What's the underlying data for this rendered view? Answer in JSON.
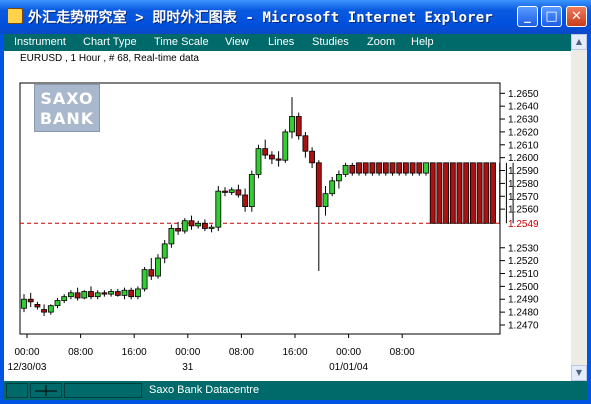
{
  "window": {
    "title": "外汇走势研究室 > 即时外汇图表 - Microsoft Internet Explorer",
    "minimize_glyph": "_",
    "maximize_glyph": "□",
    "close_glyph": "✕",
    "icon": "ie-window-icon"
  },
  "menu": {
    "items": [
      {
        "label": "Instrument"
      },
      {
        "label": "Chart Type"
      },
      {
        "label": "Time Scale"
      },
      {
        "label": "View"
      },
      {
        "label": "Lines"
      },
      {
        "label": "Studies"
      },
      {
        "label": "Zoom"
      },
      {
        "label": "Help"
      }
    ]
  },
  "chart_header": "EURUSD , 1 Hour , # 68, Real-time data",
  "logo": {
    "line1": "SAXO",
    "line2": "BANK"
  },
  "status": {
    "text": "Saxo Bank Datacentre"
  },
  "colors": {
    "frame": "#0054e3",
    "menubar": "#006a6a",
    "up_candle": "#33cc33",
    "down_candle": "#aa1111",
    "price_line": "#cc0000"
  },
  "chart_data": {
    "type": "candlestick",
    "instrument": "EURUSD",
    "timeframe": "1 Hour",
    "current_price": 1.2549,
    "current_price_label": "1.2549",
    "ylim": [
      1.2463,
      1.2658
    ],
    "y_ticks": [
      "1.2650",
      "1.2640",
      "1.2630",
      "1.2620",
      "1.2610",
      "1.2600",
      "1.2590",
      "1.2580",
      "1.2570",
      "1.2560",
      "1.2530",
      "1.2520",
      "1.2510",
      "1.2500",
      "1.2490",
      "1.2480",
      "1.2470"
    ],
    "x_ticks": [
      {
        "label": "00:00",
        "hour": 0
      },
      {
        "label": "08:00",
        "hour": 8
      },
      {
        "label": "16:00",
        "hour": 16
      },
      {
        "label": "00:00",
        "hour": 24
      },
      {
        "label": "08:00",
        "hour": 32
      },
      {
        "label": "16:00",
        "hour": 40
      },
      {
        "label": "00:00",
        "hour": 48
      },
      {
        "label": "08:00",
        "hour": 56
      }
    ],
    "date_labels": [
      {
        "label": "12/30/03",
        "hour": 0
      },
      {
        "label": "31",
        "hour": 24
      },
      {
        "label": "01/01/04",
        "hour": 48
      }
    ],
    "candles": [
      {
        "o": 1.2483,
        "h": 1.2494,
        "l": 1.248,
        "c": 1.249
      },
      {
        "o": 1.249,
        "h": 1.2495,
        "l": 1.2484,
        "c": 1.2488
      },
      {
        "o": 1.2486,
        "h": 1.2488,
        "l": 1.2482,
        "c": 1.2484
      },
      {
        "o": 1.2482,
        "h": 1.2486,
        "l": 1.2477,
        "c": 1.248
      },
      {
        "o": 1.248,
        "h": 1.2486,
        "l": 1.2478,
        "c": 1.2485
      },
      {
        "o": 1.2485,
        "h": 1.2491,
        "l": 1.2483,
        "c": 1.2489
      },
      {
        "o": 1.2489,
        "h": 1.2494,
        "l": 1.2487,
        "c": 1.2492
      },
      {
        "o": 1.2492,
        "h": 1.2497,
        "l": 1.249,
        "c": 1.2495
      },
      {
        "o": 1.2495,
        "h": 1.2499,
        "l": 1.2489,
        "c": 1.2491
      },
      {
        "o": 1.2491,
        "h": 1.2497,
        "l": 1.249,
        "c": 1.2496
      },
      {
        "o": 1.2496,
        "h": 1.25,
        "l": 1.249,
        "c": 1.2492
      },
      {
        "o": 1.2492,
        "h": 1.2497,
        "l": 1.249,
        "c": 1.2495
      },
      {
        "o": 1.2495,
        "h": 1.2497,
        "l": 1.2492,
        "c": 1.2494
      },
      {
        "o": 1.2494,
        "h": 1.2498,
        "l": 1.2492,
        "c": 1.2496
      },
      {
        "o": 1.2496,
        "h": 1.2498,
        "l": 1.2492,
        "c": 1.2493
      },
      {
        "o": 1.2493,
        "h": 1.2499,
        "l": 1.249,
        "c": 1.2497
      },
      {
        "o": 1.2497,
        "h": 1.2499,
        "l": 1.249,
        "c": 1.2492
      },
      {
        "o": 1.2492,
        "h": 1.25,
        "l": 1.249,
        "c": 1.2498
      },
      {
        "o": 1.2498,
        "h": 1.2515,
        "l": 1.2496,
        "c": 1.2513
      },
      {
        "o": 1.2513,
        "h": 1.2522,
        "l": 1.2505,
        "c": 1.2508
      },
      {
        "o": 1.2508,
        "h": 1.2525,
        "l": 1.2506,
        "c": 1.2522
      },
      {
        "o": 1.2522,
        "h": 1.2536,
        "l": 1.2518,
        "c": 1.2533
      },
      {
        "o": 1.2533,
        "h": 1.2548,
        "l": 1.253,
        "c": 1.2545
      },
      {
        "o": 1.2545,
        "h": 1.255,
        "l": 1.254,
        "c": 1.2543
      },
      {
        "o": 1.2543,
        "h": 1.2553,
        "l": 1.2541,
        "c": 1.2551
      },
      {
        "o": 1.2551,
        "h": 1.2555,
        "l": 1.2544,
        "c": 1.2547
      },
      {
        "o": 1.2547,
        "h": 1.2551,
        "l": 1.2545,
        "c": 1.2549
      },
      {
        "o": 1.2549,
        "h": 1.2552,
        "l": 1.2543,
        "c": 1.2545
      },
      {
        "o": 1.2545,
        "h": 1.2548,
        "l": 1.2542,
        "c": 1.2546
      },
      {
        "o": 1.2546,
        "h": 1.2578,
        "l": 1.2543,
        "c": 1.2574
      },
      {
        "o": 1.2574,
        "h": 1.2577,
        "l": 1.257,
        "c": 1.2573
      },
      {
        "o": 1.2573,
        "h": 1.2577,
        "l": 1.2571,
        "c": 1.2575
      },
      {
        "o": 1.2575,
        "h": 1.2579,
        "l": 1.2569,
        "c": 1.2571
      },
      {
        "o": 1.2571,
        "h": 1.2576,
        "l": 1.2558,
        "c": 1.2562
      },
      {
        "o": 1.2562,
        "h": 1.259,
        "l": 1.2558,
        "c": 1.2587
      },
      {
        "o": 1.2587,
        "h": 1.261,
        "l": 1.2584,
        "c": 1.2607
      },
      {
        "o": 1.2607,
        "h": 1.2614,
        "l": 1.2599,
        "c": 1.2602
      },
      {
        "o": 1.2602,
        "h": 1.2605,
        "l": 1.2595,
        "c": 1.2599
      },
      {
        "o": 1.2599,
        "h": 1.2605,
        "l": 1.2593,
        "c": 1.2598
      },
      {
        "o": 1.2598,
        "h": 1.2622,
        "l": 1.2596,
        "c": 1.262
      },
      {
        "o": 1.262,
        "h": 1.2647,
        "l": 1.2615,
        "c": 1.2632
      },
      {
        "o": 1.2632,
        "h": 1.2635,
        "l": 1.2614,
        "c": 1.2617
      },
      {
        "o": 1.2617,
        "h": 1.262,
        "l": 1.26,
        "c": 1.2605
      },
      {
        "o": 1.2605,
        "h": 1.2608,
        "l": 1.2592,
        "c": 1.2596
      },
      {
        "o": 1.2596,
        "h": 1.2598,
        "l": 1.2512,
        "c": 1.2562
      },
      {
        "o": 1.2562,
        "h": 1.2578,
        "l": 1.2555,
        "c": 1.2572
      },
      {
        "o": 1.2572,
        "h": 1.2585,
        "l": 1.257,
        "c": 1.2582
      },
      {
        "o": 1.2582,
        "h": 1.259,
        "l": 1.2576,
        "c": 1.2587
      },
      {
        "o": 1.2587,
        "h": 1.2596,
        "l": 1.2585,
        "c": 1.2594
      },
      {
        "o": 1.2594,
        "h": 1.2596,
        "l": 1.2586,
        "c": 1.2588
      },
      {
        "o": 1.2596,
        "h": 1.2596,
        "l": 1.2586,
        "c": 1.2588
      },
      {
        "o": 1.2596,
        "h": 1.2596,
        "l": 1.2586,
        "c": 1.2588
      },
      {
        "o": 1.2596,
        "h": 1.2596,
        "l": 1.2586,
        "c": 1.2588
      },
      {
        "o": 1.2596,
        "h": 1.2596,
        "l": 1.2586,
        "c": 1.2588
      },
      {
        "o": 1.2596,
        "h": 1.2596,
        "l": 1.2586,
        "c": 1.2588
      },
      {
        "o": 1.2596,
        "h": 1.2596,
        "l": 1.2586,
        "c": 1.2588
      },
      {
        "o": 1.2596,
        "h": 1.2596,
        "l": 1.2586,
        "c": 1.2588
      },
      {
        "o": 1.2596,
        "h": 1.2596,
        "l": 1.2586,
        "c": 1.2588
      },
      {
        "o": 1.2596,
        "h": 1.2596,
        "l": 1.2586,
        "c": 1.2588
      },
      {
        "o": 1.2596,
        "h": 1.2596,
        "l": 1.2586,
        "c": 1.2588
      },
      {
        "o": 1.2588,
        "h": 1.2596,
        "l": 1.2586,
        "c": 1.2596
      },
      {
        "o": 1.2596,
        "h": 1.2596,
        "l": 1.2549,
        "c": 1.2549
      },
      {
        "o": 1.2596,
        "h": 1.2596,
        "l": 1.2549,
        "c": 1.2549
      },
      {
        "o": 1.2596,
        "h": 1.2596,
        "l": 1.2549,
        "c": 1.2549
      },
      {
        "o": 1.2596,
        "h": 1.2596,
        "l": 1.2549,
        "c": 1.2549
      },
      {
        "o": 1.2596,
        "h": 1.2596,
        "l": 1.2549,
        "c": 1.2549
      },
      {
        "o": 1.2596,
        "h": 1.2596,
        "l": 1.2549,
        "c": 1.2549
      },
      {
        "o": 1.2596,
        "h": 1.2596,
        "l": 1.2549,
        "c": 1.2549
      },
      {
        "o": 1.2596,
        "h": 1.2596,
        "l": 1.2549,
        "c": 1.2549
      },
      {
        "o": 1.2596,
        "h": 1.2596,
        "l": 1.2549,
        "c": 1.2549
      },
      {
        "o": 1.2596,
        "h": 1.2596,
        "l": 1.2549,
        "c": 1.2549
      }
    ],
    "trailing_ticks": 3
  }
}
